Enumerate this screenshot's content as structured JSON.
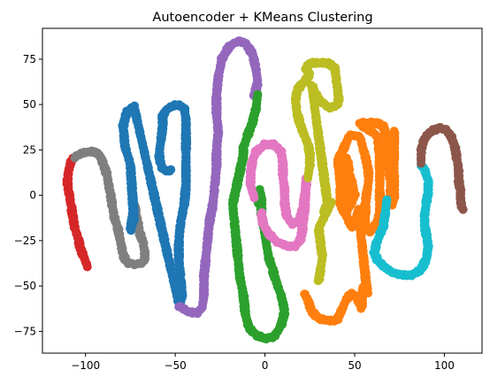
{
  "chart_data": {
    "type": "scatter",
    "title": "Autoencoder + KMeans Clustering",
    "xlabel": "",
    "ylabel": "",
    "xlim": [
      -124,
      121
    ],
    "ylim": [
      -87,
      92
    ],
    "xticks": [
      -100,
      -50,
      0,
      50,
      100
    ],
    "yticks": [
      -75,
      -50,
      -25,
      0,
      25,
      50,
      75
    ],
    "grid": false,
    "legend": "none",
    "series": [
      {
        "color": "#d62728",
        "points": [
          [
            -99,
            -39
          ],
          [
            -101,
            -34
          ],
          [
            -103,
            -29
          ],
          [
            -104,
            -24
          ],
          [
            -106,
            -18
          ],
          [
            -107,
            -12
          ],
          [
            -108,
            -6
          ],
          [
            -109,
            0
          ],
          [
            -110,
            5
          ],
          [
            -110,
            10
          ],
          [
            -109,
            15
          ],
          [
            -108,
            19
          ],
          [
            -106,
            21
          ]
        ]
      },
      {
        "color": "#7f7f7f",
        "points": [
          [
            -106,
            21
          ],
          [
            -103,
            23
          ],
          [
            -99,
            24
          ],
          [
            -95,
            24
          ],
          [
            -92,
            22
          ],
          [
            -90,
            17
          ],
          [
            -88,
            11
          ],
          [
            -87,
            5
          ],
          [
            -86,
            0
          ],
          [
            -85,
            -6
          ],
          [
            -84,
            -12
          ],
          [
            -82,
            -18
          ],
          [
            -81,
            -23
          ],
          [
            -80,
            -28
          ],
          [
            -79,
            -33
          ],
          [
            -77,
            -37
          ],
          [
            -74,
            -38
          ],
          [
            -70,
            -38
          ],
          [
            -67,
            -36
          ],
          [
            -67,
            -31
          ],
          [
            -68,
            -26
          ],
          [
            -70,
            -20
          ],
          [
            -71,
            -14
          ],
          [
            -72,
            -9
          ],
          [
            -73,
            -4
          ]
        ]
      },
      {
        "color": "#1f77b4",
        "points": [
          [
            -73,
            -4
          ],
          [
            -75,
            -19
          ],
          [
            -73,
            -13
          ],
          [
            -75,
            17
          ],
          [
            -78,
            27
          ],
          [
            -79,
            38
          ],
          [
            -77,
            46
          ],
          [
            -73,
            49
          ],
          [
            -48,
            -60
          ],
          [
            -46,
            -55
          ],
          [
            -47,
            -45
          ],
          [
            -48,
            -35
          ],
          [
            -48,
            -25
          ],
          [
            -47,
            -15
          ],
          [
            -45,
            -5
          ],
          [
            -44,
            5
          ],
          [
            -44,
            15
          ],
          [
            -44,
            25
          ],
          [
            -44,
            35
          ],
          [
            -44,
            42
          ],
          [
            -45,
            48
          ],
          [
            -49,
            50
          ],
          [
            -54,
            48
          ],
          [
            -57,
            44
          ],
          [
            -57,
            38
          ],
          [
            -58,
            30
          ],
          [
            -59,
            23
          ],
          [
            -58,
            16
          ],
          [
            -55,
            13
          ],
          [
            -52,
            14
          ]
        ]
      },
      {
        "color": "#9467bd",
        "points": [
          [
            -48,
            -61
          ],
          [
            -43,
            -64
          ],
          [
            -38,
            -65
          ],
          [
            -35,
            -62
          ],
          [
            -34,
            -55
          ],
          [
            -34,
            -45
          ],
          [
            -33,
            -35
          ],
          [
            -32,
            -25
          ],
          [
            -31,
            -15
          ],
          [
            -29,
            -5
          ],
          [
            -28,
            5
          ],
          [
            -27,
            15
          ],
          [
            -27,
            25
          ],
          [
            -26,
            35
          ],
          [
            -27,
            45
          ],
          [
            -27,
            55
          ],
          [
            -26,
            65
          ],
          [
            -24,
            75
          ],
          [
            -20,
            82
          ],
          [
            -15,
            85
          ],
          [
            -11,
            84
          ],
          [
            -7,
            78
          ],
          [
            -5,
            70
          ],
          [
            -4,
            62
          ],
          [
            -6,
            55
          ]
        ]
      },
      {
        "color": "#2ca02c",
        "points": [
          [
            -4,
            56
          ],
          [
            -5,
            48
          ],
          [
            -7,
            40
          ],
          [
            -10,
            32
          ],
          [
            -12,
            26
          ],
          [
            -12,
            22
          ],
          [
            -18,
            -5
          ],
          [
            -17,
            -15
          ],
          [
            -16,
            -25
          ],
          [
            -15,
            -35
          ],
          [
            -14,
            -45
          ],
          [
            -12,
            -55
          ],
          [
            -11,
            -65
          ],
          [
            -9,
            -73
          ],
          [
            -5,
            -77
          ],
          [
            0,
            -79
          ],
          [
            5,
            -78
          ],
          [
            9,
            -72
          ],
          [
            11,
            -64
          ],
          [
            9,
            -55
          ],
          [
            6,
            -47
          ],
          [
            4,
            -40
          ],
          [
            2,
            -34
          ],
          [
            -2,
            -10
          ],
          [
            -2,
            -2
          ],
          [
            -3,
            3
          ],
          [
            -4,
            -5
          ]
        ]
      },
      {
        "color": "#e377c2",
        "points": [
          [
            -6,
            -1
          ],
          [
            -8,
            5
          ],
          [
            -8,
            12
          ],
          [
            -7,
            19
          ],
          [
            -5,
            24
          ],
          [
            0,
            28
          ],
          [
            5,
            28
          ],
          [
            9,
            24
          ],
          [
            10,
            17
          ],
          [
            10,
            10
          ],
          [
            11,
            3
          ],
          [
            11,
            -4
          ],
          [
            12,
            -11
          ],
          [
            15,
            -16
          ],
          [
            19,
            -14
          ],
          [
            21,
            -8
          ],
          [
            22,
            -1
          ],
          [
            23,
            5
          ],
          [
            23,
            9
          ],
          [
            22,
            -10
          ],
          [
            21,
            -18
          ],
          [
            20,
            -24
          ],
          [
            17,
            -28
          ],
          [
            13,
            -28
          ],
          [
            7,
            -26
          ],
          [
            2,
            -21
          ],
          [
            -1,
            -16
          ],
          [
            -2,
            -10
          ]
        ]
      },
      {
        "color": "#bcbd22",
        "points": [
          [
            24,
            10
          ],
          [
            25,
            17
          ],
          [
            25,
            23
          ],
          [
            24,
            28
          ],
          [
            22,
            33
          ],
          [
            20,
            38
          ],
          [
            18,
            45
          ],
          [
            17,
            52
          ],
          [
            18,
            58
          ],
          [
            22,
            63
          ],
          [
            25,
            66
          ],
          [
            23,
            70
          ],
          [
            25,
            73
          ],
          [
            30,
            73
          ],
          [
            35,
            73
          ],
          [
            39,
            70
          ],
          [
            40,
            62
          ],
          [
            41,
            55
          ],
          [
            41,
            50
          ],
          [
            36,
            48
          ],
          [
            31,
            52
          ],
          [
            28,
            56
          ],
          [
            26,
            61
          ],
          [
            35,
            -5
          ],
          [
            33,
            -9
          ],
          [
            37,
            -4
          ],
          [
            30,
            -18
          ],
          [
            31,
            -27
          ],
          [
            32,
            -34
          ],
          [
            31,
            -41
          ],
          [
            30,
            -47
          ]
        ]
      },
      {
        "color": "#ff7f0e",
        "points": [
          [
            22,
            -54
          ],
          [
            24,
            -58
          ],
          [
            26,
            -64
          ],
          [
            30,
            -68
          ],
          [
            35,
            -69
          ],
          [
            40,
            -69
          ],
          [
            43,
            -63
          ],
          [
            45,
            -58
          ],
          [
            48,
            -54
          ],
          [
            50,
            -55
          ],
          [
            52,
            -58
          ],
          [
            54,
            -62
          ],
          [
            54,
            -55
          ],
          [
            55,
            -50
          ],
          [
            57,
            -54
          ],
          [
            52,
            -8
          ],
          [
            51,
            -13
          ],
          [
            49,
            -18
          ],
          [
            42,
            -5
          ],
          [
            42,
            5
          ],
          [
            41,
            15
          ],
          [
            41,
            22
          ],
          [
            45,
            21
          ],
          [
            46,
            19
          ],
          [
            47,
            12
          ],
          [
            49,
            5
          ],
          [
            50,
            0
          ],
          [
            45,
            -10
          ],
          [
            47,
            -2
          ],
          [
            42,
            12
          ],
          [
            42,
            22
          ],
          [
            45,
            28
          ],
          [
            47,
            33
          ],
          [
            50,
            33
          ],
          [
            53,
            32
          ],
          [
            55,
            25
          ],
          [
            57,
            17
          ],
          [
            58,
            10
          ],
          [
            57,
            3
          ],
          [
            56,
            -4
          ],
          [
            56,
            -12
          ],
          [
            56,
            -18
          ],
          [
            59,
            -20
          ],
          [
            62,
            -16
          ],
          [
            64,
            -10
          ],
          [
            64,
            -3
          ],
          [
            64,
            3
          ],
          [
            64,
            8
          ],
          [
            64,
            15
          ],
          [
            64,
            22
          ],
          [
            63,
            28
          ],
          [
            63,
            32
          ],
          [
            61,
            34
          ],
          [
            58,
            36
          ],
          [
            55,
            38
          ],
          [
            53,
            40
          ],
          [
            57,
            40
          ],
          [
            62,
            40
          ],
          [
            66,
            38
          ],
          [
            68,
            32
          ],
          [
            68,
            20
          ],
          [
            69,
            14
          ],
          [
            70,
            8
          ],
          [
            70,
            3
          ],
          [
            70,
            -2
          ],
          [
            71,
            -5
          ],
          [
            72,
            -2
          ],
          [
            72,
            5
          ],
          [
            72,
            12
          ],
          [
            72,
            20
          ],
          [
            72,
            28
          ],
          [
            72,
            35
          ]
        ]
      },
      {
        "color": "#17becf",
        "points": [
          [
            68,
            -2
          ],
          [
            67,
            -10
          ],
          [
            66,
            -17
          ],
          [
            64,
            -22
          ],
          [
            62,
            -27
          ],
          [
            61,
            -32
          ],
          [
            63,
            -36
          ],
          [
            67,
            -40
          ],
          [
            72,
            -43
          ],
          [
            77,
            -44
          ],
          [
            82,
            -44
          ],
          [
            87,
            -41
          ],
          [
            90,
            -35
          ],
          [
            91,
            -28
          ],
          [
            90,
            -22
          ],
          [
            89,
            -17
          ],
          [
            89,
            -11
          ],
          [
            90,
            -4
          ],
          [
            91,
            2
          ],
          [
            91,
            8
          ],
          [
            89,
            14
          ],
          [
            87,
            17
          ]
        ]
      },
      {
        "color": "#8c564b",
        "points": [
          [
            87,
            18
          ],
          [
            87,
            24
          ],
          [
            88,
            29
          ],
          [
            90,
            33
          ],
          [
            94,
            36
          ],
          [
            98,
            37
          ],
          [
            101,
            36
          ],
          [
            104,
            32
          ],
          [
            106,
            26
          ],
          [
            107,
            20
          ],
          [
            108,
            14
          ],
          [
            108,
            8
          ],
          [
            109,
            2
          ],
          [
            109,
            -3
          ],
          [
            110,
            -8
          ]
        ]
      }
    ]
  }
}
